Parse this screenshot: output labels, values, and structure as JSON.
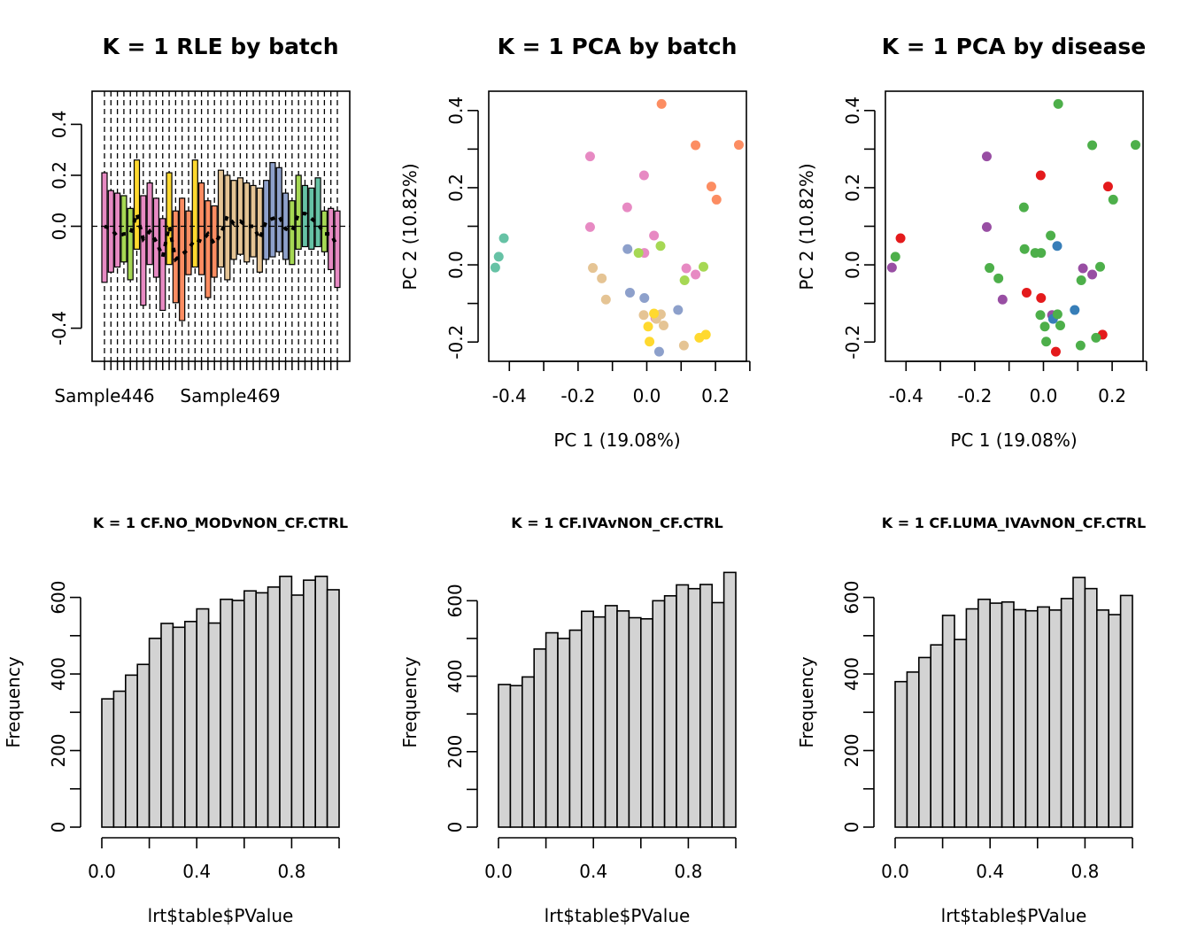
{
  "colors": {
    "background": "#ffffff",
    "hist_fill": "#d3d3d3",
    "ink": "#000000"
  },
  "chart_data": [
    {
      "type": "box",
      "title": "K = 1 RLE by batch",
      "xlabel": "",
      "ylabel": "",
      "x_tick_labels": [
        "Sample446",
        "Sample469"
      ],
      "y_ticks": [
        -0.4,
        0.0,
        0.2,
        0.4
      ],
      "ylim": [
        -0.53,
        0.53
      ],
      "grid": false,
      "reference_line": 0.0,
      "boxes": [
        {
          "q1": -0.22,
          "med": 0.0,
          "q3": 0.21,
          "color": "#e78ac3"
        },
        {
          "q1": -0.18,
          "med": -0.01,
          "q3": 0.14,
          "color": "#e78ac3"
        },
        {
          "q1": -0.16,
          "med": -0.04,
          "q3": 0.13,
          "color": "#e78ac3"
        },
        {
          "q1": -0.14,
          "med": -0.03,
          "q3": 0.12,
          "color": "#a6d854"
        },
        {
          "q1": -0.21,
          "med": -0.03,
          "q3": 0.07,
          "color": "#a6d854"
        },
        {
          "q1": -0.09,
          "med": 0.05,
          "q3": 0.26,
          "color": "#ffd92f"
        },
        {
          "q1": -0.31,
          "med": -0.05,
          "q3": 0.12,
          "color": "#e78ac3"
        },
        {
          "q1": -0.15,
          "med": -0.02,
          "q3": 0.17,
          "color": "#e78ac3"
        },
        {
          "q1": -0.2,
          "med": -0.06,
          "q3": 0.11,
          "color": "#e78ac3"
        },
        {
          "q1": -0.33,
          "med": -0.12,
          "q3": 0.03,
          "color": "#e78ac3"
        },
        {
          "q1": -0.15,
          "med": 0.0,
          "q3": 0.21,
          "color": "#ffd92f"
        },
        {
          "q1": -0.3,
          "med": -0.13,
          "q3": 0.06,
          "color": "#fc8d62"
        },
        {
          "q1": -0.37,
          "med": -0.11,
          "q3": 0.11,
          "color": "#fc8d62"
        },
        {
          "q1": -0.19,
          "med": -0.09,
          "q3": 0.06,
          "color": "#fc8d62"
        },
        {
          "q1": -0.16,
          "med": -0.05,
          "q3": 0.26,
          "color": "#ffd92f"
        },
        {
          "q1": -0.19,
          "med": -0.06,
          "q3": 0.17,
          "color": "#fc8d62"
        },
        {
          "q1": -0.28,
          "med": -0.03,
          "q3": 0.1,
          "color": "#fc8d62"
        },
        {
          "q1": -0.2,
          "med": -0.07,
          "q3": 0.08,
          "color": "#fc8d62"
        },
        {
          "q1": -0.16,
          "med": -0.03,
          "q3": 0.22,
          "color": "#e5c494"
        },
        {
          "q1": -0.21,
          "med": 0.04,
          "q3": 0.2,
          "color": "#e5c494"
        },
        {
          "q1": -0.13,
          "med": 0.01,
          "q3": 0.18,
          "color": "#e5c494"
        },
        {
          "q1": -0.11,
          "med": 0.02,
          "q3": 0.19,
          "color": "#e5c494"
        },
        {
          "q1": -0.14,
          "med": 0.0,
          "q3": 0.17,
          "color": "#e5c494"
        },
        {
          "q1": -0.12,
          "med": 0.0,
          "q3": 0.16,
          "color": "#e5c494"
        },
        {
          "q1": -0.18,
          "med": -0.05,
          "q3": 0.15,
          "color": "#e5c494"
        },
        {
          "q1": -0.13,
          "med": 0.02,
          "q3": 0.18,
          "color": "#8da0cb"
        },
        {
          "q1": -0.12,
          "med": 0.03,
          "q3": 0.25,
          "color": "#8da0cb"
        },
        {
          "q1": -0.1,
          "med": 0.04,
          "q3": 0.23,
          "color": "#8da0cb"
        },
        {
          "q1": -0.13,
          "med": -0.01,
          "q3": 0.13,
          "color": "#8da0cb"
        },
        {
          "q1": -0.15,
          "med": -0.02,
          "q3": 0.1,
          "color": "#a6d854"
        },
        {
          "q1": -0.09,
          "med": 0.05,
          "q3": 0.2,
          "color": "#a6d854"
        },
        {
          "q1": -0.08,
          "med": 0.05,
          "q3": 0.16,
          "color": "#66c2a5"
        },
        {
          "q1": -0.09,
          "med": 0.03,
          "q3": 0.15,
          "color": "#66c2a5"
        },
        {
          "q1": -0.08,
          "med": 0.01,
          "q3": 0.19,
          "color": "#66c2a5"
        },
        {
          "q1": -0.1,
          "med": -0.03,
          "q3": 0.06,
          "color": "#a6d854"
        },
        {
          "q1": -0.17,
          "med": -0.03,
          "q3": 0.07,
          "color": "#e78ac3"
        },
        {
          "q1": -0.24,
          "med": -0.08,
          "q3": 0.06,
          "color": "#e78ac3"
        }
      ]
    },
    {
      "type": "scatter",
      "title": "K = 1 PCA by batch",
      "xlabel": "PC 1 (19.08%)",
      "ylabel": "PC 2 (10.82%)",
      "xlim": [
        -0.46,
        0.29
      ],
      "ylim": [
        -0.25,
        0.45
      ],
      "x_ticks": [
        -0.4,
        -0.2,
        0.0,
        0.2
      ],
      "y_ticks": [
        -0.2,
        0.0,
        0.2,
        0.4
      ],
      "grid": false,
      "points": [
        {
          "x": 0.043,
          "y": 0.417,
          "color": "#fc8d62"
        },
        {
          "x": 0.142,
          "y": 0.31,
          "color": "#fc8d62"
        },
        {
          "x": 0.268,
          "y": 0.311,
          "color": "#fc8d62"
        },
        {
          "x": 0.188,
          "y": 0.203,
          "color": "#fc8d62"
        },
        {
          "x": 0.203,
          "y": 0.169,
          "color": "#fc8d62"
        },
        {
          "x": -0.165,
          "y": 0.281,
          "color": "#e78ac3"
        },
        {
          "x": -0.008,
          "y": 0.232,
          "color": "#e78ac3"
        },
        {
          "x": -0.057,
          "y": 0.149,
          "color": "#e78ac3"
        },
        {
          "x": -0.165,
          "y": 0.098,
          "color": "#e78ac3"
        },
        {
          "x": 0.021,
          "y": 0.076,
          "color": "#e78ac3"
        },
        {
          "x": -0.007,
          "y": 0.031,
          "color": "#e78ac3"
        },
        {
          "x": 0.115,
          "y": -0.009,
          "color": "#e78ac3"
        },
        {
          "x": 0.142,
          "y": -0.025,
          "color": "#e78ac3"
        },
        {
          "x": 0.025,
          "y": -0.138,
          "color": "#e78ac3"
        },
        {
          "x": -0.416,
          "y": 0.069,
          "color": "#66c2a5"
        },
        {
          "x": -0.431,
          "y": 0.021,
          "color": "#66c2a5"
        },
        {
          "x": -0.441,
          "y": -0.007,
          "color": "#66c2a5"
        },
        {
          "x": 0.04,
          "y": 0.049,
          "color": "#a6d854"
        },
        {
          "x": -0.024,
          "y": 0.031,
          "color": "#a6d854"
        },
        {
          "x": 0.165,
          "y": -0.005,
          "color": "#a6d854"
        },
        {
          "x": 0.11,
          "y": -0.04,
          "color": "#a6d854"
        },
        {
          "x": -0.056,
          "y": 0.041,
          "color": "#8da0cb"
        },
        {
          "x": 0.091,
          "y": -0.117,
          "color": "#8da0cb"
        },
        {
          "x": -0.049,
          "y": -0.072,
          "color": "#8da0cb"
        },
        {
          "x": -0.007,
          "y": -0.086,
          "color": "#8da0cb"
        },
        {
          "x": 0.036,
          "y": -0.225,
          "color": "#8da0cb"
        },
        {
          "x": -0.157,
          "y": -0.008,
          "color": "#e5c494"
        },
        {
          "x": -0.131,
          "y": -0.035,
          "color": "#e5c494"
        },
        {
          "x": -0.119,
          "y": -0.09,
          "color": "#e5c494"
        },
        {
          "x": -0.009,
          "y": -0.13,
          "color": "#e5c494"
        },
        {
          "x": 0.041,
          "y": -0.128,
          "color": "#e5c494"
        },
        {
          "x": 0.028,
          "y": -0.14,
          "color": "#e5c494"
        },
        {
          "x": 0.049,
          "y": -0.157,
          "color": "#e5c494"
        },
        {
          "x": 0.108,
          "y": -0.209,
          "color": "#e5c494"
        },
        {
          "x": 0.021,
          "y": -0.126,
          "color": "#ffd92f"
        },
        {
          "x": 0.004,
          "y": -0.16,
          "color": "#ffd92f"
        },
        {
          "x": 0.008,
          "y": -0.199,
          "color": "#ffd92f"
        },
        {
          "x": 0.172,
          "y": -0.181,
          "color": "#ffd92f"
        },
        {
          "x": 0.153,
          "y": -0.189,
          "color": "#ffd92f"
        }
      ]
    },
    {
      "type": "scatter",
      "title": "K = 1 PCA by disease",
      "xlabel": "PC 1 (19.08%)",
      "ylabel": "PC 2 (10.82%)",
      "xlim": [
        -0.46,
        0.29
      ],
      "ylim": [
        -0.25,
        0.45
      ],
      "x_ticks": [
        -0.4,
        -0.2,
        0.0,
        0.2
      ],
      "y_ticks": [
        -0.2,
        0.0,
        0.2,
        0.4
      ],
      "grid": false,
      "points": [
        {
          "x": 0.043,
          "y": 0.417,
          "color": "#4daf4a"
        },
        {
          "x": 0.142,
          "y": 0.31,
          "color": "#4daf4a"
        },
        {
          "x": 0.268,
          "y": 0.311,
          "color": "#4daf4a"
        },
        {
          "x": 0.188,
          "y": 0.203,
          "color": "#e41a1c"
        },
        {
          "x": 0.203,
          "y": 0.169,
          "color": "#4daf4a"
        },
        {
          "x": -0.165,
          "y": 0.281,
          "color": "#984ea3"
        },
        {
          "x": -0.008,
          "y": 0.232,
          "color": "#e41a1c"
        },
        {
          "x": -0.057,
          "y": 0.149,
          "color": "#4daf4a"
        },
        {
          "x": -0.165,
          "y": 0.098,
          "color": "#984ea3"
        },
        {
          "x": 0.021,
          "y": 0.076,
          "color": "#4daf4a"
        },
        {
          "x": 0.04,
          "y": 0.049,
          "color": "#377eb8"
        },
        {
          "x": -0.055,
          "y": 0.041,
          "color": "#4daf4a"
        },
        {
          "x": -0.024,
          "y": 0.031,
          "color": "#4daf4a"
        },
        {
          "x": -0.007,
          "y": 0.031,
          "color": "#4daf4a"
        },
        {
          "x": -0.416,
          "y": 0.069,
          "color": "#e41a1c"
        },
        {
          "x": -0.431,
          "y": 0.021,
          "color": "#4daf4a"
        },
        {
          "x": -0.441,
          "y": -0.007,
          "color": "#984ea3"
        },
        {
          "x": -0.157,
          "y": -0.008,
          "color": "#4daf4a"
        },
        {
          "x": 0.115,
          "y": -0.009,
          "color": "#984ea3"
        },
        {
          "x": 0.165,
          "y": -0.005,
          "color": "#4daf4a"
        },
        {
          "x": 0.142,
          "y": -0.025,
          "color": "#984ea3"
        },
        {
          "x": -0.131,
          "y": -0.035,
          "color": "#4daf4a"
        },
        {
          "x": 0.11,
          "y": -0.04,
          "color": "#4daf4a"
        },
        {
          "x": -0.049,
          "y": -0.072,
          "color": "#e41a1c"
        },
        {
          "x": -0.007,
          "y": -0.086,
          "color": "#e41a1c"
        },
        {
          "x": -0.119,
          "y": -0.09,
          "color": "#984ea3"
        },
        {
          "x": 0.091,
          "y": -0.117,
          "color": "#377eb8"
        },
        {
          "x": -0.009,
          "y": -0.13,
          "color": "#4daf4a"
        },
        {
          "x": 0.025,
          "y": -0.13,
          "color": "#984ea3"
        },
        {
          "x": 0.028,
          "y": -0.14,
          "color": "#377eb8"
        },
        {
          "x": 0.041,
          "y": -0.128,
          "color": "#4daf4a"
        },
        {
          "x": 0.004,
          "y": -0.16,
          "color": "#4daf4a"
        },
        {
          "x": 0.049,
          "y": -0.157,
          "color": "#4daf4a"
        },
        {
          "x": 0.172,
          "y": -0.181,
          "color": "#e41a1c"
        },
        {
          "x": 0.153,
          "y": -0.189,
          "color": "#4daf4a"
        },
        {
          "x": 0.008,
          "y": -0.199,
          "color": "#4daf4a"
        },
        {
          "x": 0.108,
          "y": -0.209,
          "color": "#4daf4a"
        },
        {
          "x": 0.036,
          "y": -0.225,
          "color": "#e41a1c"
        }
      ]
    },
    {
      "type": "histogram",
      "title": "K = 1 CF.NO_MODvNON_CF.CTRL",
      "xlabel": "lrt$table$PValue",
      "ylabel": "Frequency",
      "bin_edges": [
        0.0,
        0.05,
        0.1,
        0.15,
        0.2,
        0.25,
        0.3,
        0.35,
        0.4,
        0.45,
        0.5,
        0.55,
        0.6,
        0.65,
        0.7,
        0.75,
        0.8,
        0.85,
        0.9,
        0.95,
        1.0
      ],
      "counts": [
        335,
        355,
        397,
        425,
        493,
        532,
        522,
        537,
        570,
        533,
        595,
        592,
        617,
        612,
        627,
        655,
        606,
        645,
        655,
        620
      ],
      "x_ticks": [
        0.0,
        0.4,
        0.8
      ],
      "y_ticks": [
        0,
        200,
        400,
        600
      ],
      "xlim": [
        0,
        1
      ],
      "ylim": [
        0,
        680
      ],
      "grid": false
    },
    {
      "type": "histogram",
      "title": "K = 1 CF.IVAvNON_CF.CTRL",
      "xlabel": "lrt$table$PValue",
      "ylabel": "Frequency",
      "bin_edges": [
        0.0,
        0.05,
        0.1,
        0.15,
        0.2,
        0.25,
        0.3,
        0.35,
        0.4,
        0.45,
        0.5,
        0.55,
        0.6,
        0.65,
        0.7,
        0.75,
        0.8,
        0.85,
        0.9,
        0.95,
        1.0
      ],
      "counts": [
        378,
        375,
        398,
        472,
        515,
        500,
        522,
        572,
        557,
        587,
        573,
        555,
        552,
        600,
        613,
        642,
        632,
        643,
        595,
        675
      ],
      "x_ticks": [
        0.0,
        0.4,
        0.8
      ],
      "y_ticks": [
        0,
        200,
        400,
        600
      ],
      "xlim": [
        0,
        1
      ],
      "ylim": [
        0,
        690
      ],
      "grid": false
    },
    {
      "type": "histogram",
      "title": "K = 1 CF.LUMA_IVAvNON_CF.CTRL",
      "xlabel": "lrt$table$PValue",
      "ylabel": "Frequency",
      "bin_edges": [
        0.0,
        0.05,
        0.1,
        0.15,
        0.2,
        0.25,
        0.3,
        0.35,
        0.4,
        0.45,
        0.5,
        0.55,
        0.6,
        0.65,
        0.7,
        0.75,
        0.8,
        0.85,
        0.9,
        0.95,
        1.0
      ],
      "counts": [
        380,
        405,
        443,
        476,
        553,
        490,
        570,
        595,
        585,
        588,
        568,
        565,
        575,
        567,
        597,
        652,
        623,
        567,
        555,
        605
      ],
      "x_ticks": [
        0.0,
        0.4,
        0.8
      ],
      "y_ticks": [
        0,
        200,
        400,
        600
      ],
      "xlim": [
        0,
        1
      ],
      "ylim": [
        0,
        680
      ],
      "grid": false
    }
  ]
}
